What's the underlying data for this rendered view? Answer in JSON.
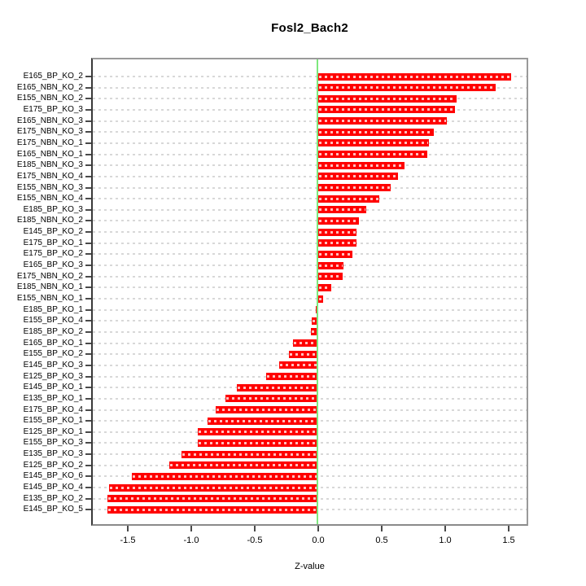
{
  "chart_data": {
    "type": "bar",
    "orientation": "horizontal",
    "title": "Fosl2_Bach2",
    "xlabel": "Z-value",
    "ylabel": "",
    "xlim": [
      -1.79,
      1.65
    ],
    "xtick_values": [
      -1.5,
      -1.0,
      -0.5,
      0.0,
      0.5,
      1.0,
      1.5
    ],
    "xtick_labels": [
      "-1.5",
      "-1.0",
      "-0.5",
      "0.0",
      "0.5",
      "1.0",
      "1.5"
    ],
    "grid": "dashed horizontal line per category",
    "legend_position": "none",
    "zero_reference_line": 0.0,
    "colors": {
      "bar": "#ff0000",
      "zero_line": "#7de87d",
      "gridline": "#d8d8d8",
      "box_border": "#9a9a9a",
      "text": "#000000"
    },
    "categories": [
      "E165_BP_KO_2",
      "E165_NBN_KO_2",
      "E155_NBN_KO_2",
      "E175_BP_KO_3",
      "E165_NBN_KO_3",
      "E175_NBN_KO_3",
      "E175_NBN_KO_1",
      "E165_NBN_KO_1",
      "E185_NBN_KO_3",
      "E175_NBN_KO_4",
      "E155_NBN_KO_3",
      "E155_NBN_KO_4",
      "E185_BP_KO_3",
      "E185_NBN_KO_2",
      "E145_BP_KO_2",
      "E175_BP_KO_1",
      "E175_BP_KO_2",
      "E165_BP_KO_3",
      "E175_NBN_KO_2",
      "E185_NBN_KO_1",
      "E155_NBN_KO_1",
      "E185_BP_KO_1",
      "E155_BP_KO_4",
      "E185_BP_KO_2",
      "E165_BP_KO_1",
      "E155_BP_KO_2",
      "E145_BP_KO_3",
      "E125_BP_KO_3",
      "E145_BP_KO_1",
      "E135_BP_KO_1",
      "E175_BP_KO_4",
      "E155_BP_KO_1",
      "E125_BP_KO_1",
      "E155_BP_KO_3",
      "E135_BP_KO_3",
      "E125_BP_KO_2",
      "E145_BP_KO_6",
      "E145_BP_KO_4",
      "E135_BP_KO_2",
      "E145_BP_KO_5"
    ],
    "values": [
      1.52,
      1.4,
      1.09,
      1.08,
      1.01,
      0.91,
      0.87,
      0.86,
      0.68,
      0.63,
      0.57,
      0.48,
      0.38,
      0.32,
      0.3,
      0.3,
      0.27,
      0.2,
      0.19,
      0.1,
      0.04,
      -0.02,
      -0.05,
      -0.06,
      -0.2,
      -0.23,
      -0.31,
      -0.41,
      -0.64,
      -0.73,
      -0.81,
      -0.87,
      -0.95,
      -0.95,
      -1.08,
      -1.17,
      -1.47,
      -1.65,
      -1.66,
      -1.66
    ]
  }
}
